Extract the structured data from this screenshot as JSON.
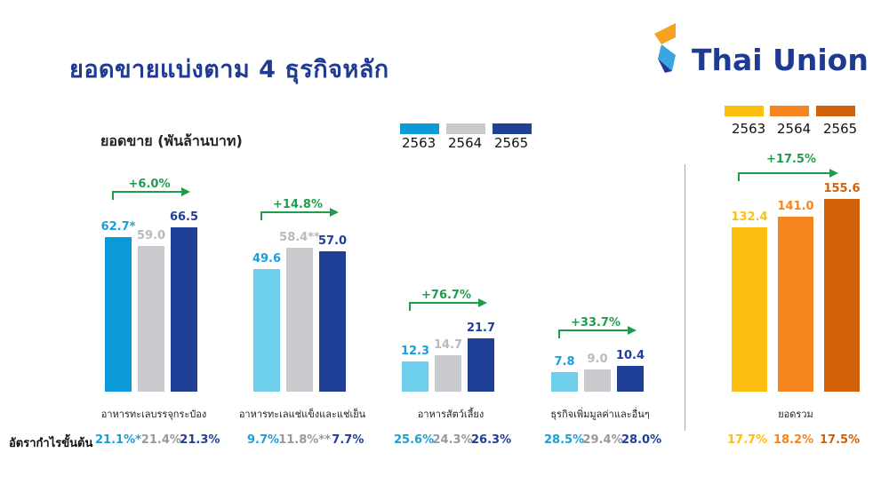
{
  "title": "ยอดขายแบ่งตาม 4 ธุรกิจหลัก",
  "logo": {
    "text": "Thai Union"
  },
  "chart_data": [
    {
      "type": "bar",
      "title": "ยอดขาย (พันล้านบาท)",
      "legend": [
        "2563",
        "2564",
        "2565"
      ],
      "colors": [
        "#0a9ad8",
        "#c9cacd",
        "#203f97"
      ],
      "light_color_2563": "#6fd0ee",
      "categories": [
        "อาหารทะเลบรรจุกระป๋อง",
        "อาหารทะเลแช่แข็งและแช่เย็น",
        "อาหารสัตว์เลี้ยง",
        "ธุรกิจเพิ่มมูลค่าและอื่นๆ"
      ],
      "series": [
        {
          "name": "2563",
          "values": [
            62.7,
            49.6,
            12.3,
            7.8
          ],
          "labels": [
            "62.7*",
            "49.6",
            "12.3",
            "7.8"
          ]
        },
        {
          "name": "2564",
          "values": [
            59.0,
            58.4,
            14.7,
            9.0
          ],
          "labels": [
            "59.0",
            "58.4**",
            "14.7",
            "9.0"
          ]
        },
        {
          "name": "2565",
          "values": [
            66.5,
            57.0,
            21.7,
            10.4
          ],
          "labels": [
            "66.5",
            "57.0",
            "21.7",
            "10.4"
          ]
        }
      ],
      "growth": [
        "+6.0%",
        "+14.8%",
        "+76.7%",
        "+33.7%"
      ],
      "gross_margin_label": "อัตรากำไรขั้นต้น",
      "gross_margin": [
        [
          "21.1%*",
          "21.4%",
          "21.3%"
        ],
        [
          "9.7%",
          "11.8%**",
          "7.7%"
        ],
        [
          "25.6%",
          "24.3%",
          "26.3%"
        ],
        [
          "28.5%",
          "29.4%",
          "28.0%"
        ]
      ]
    },
    {
      "type": "bar",
      "legend": [
        "2563",
        "2564",
        "2565"
      ],
      "colors": [
        "#fdbf0f",
        "#f7851f",
        "#d2620a"
      ],
      "categories": [
        "ยอดรวม"
      ],
      "values": [
        132.4,
        141.0,
        155.6
      ],
      "labels": [
        "132.4",
        "141.0",
        "155.6"
      ],
      "growth": "+17.5%",
      "gross_margin": [
        "17.7%",
        "18.2%",
        "17.5%"
      ]
    }
  ]
}
